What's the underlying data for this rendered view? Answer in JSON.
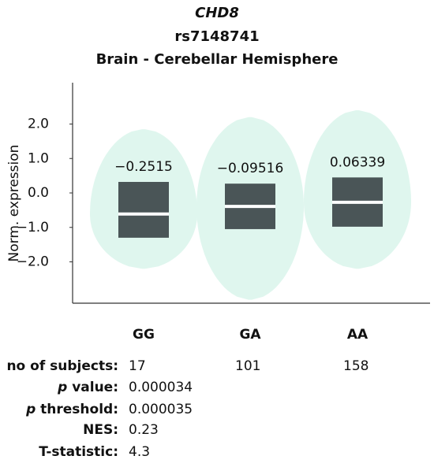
{
  "chart_data": {
    "type": "violin",
    "title": "CHD8",
    "subtitle": "rs7148741",
    "tissue": "Brain - Cerebellar Hemisphere",
    "ylabel": "Norm. expression",
    "categories": [
      "GG",
      "GA",
      "AA"
    ],
    "color": "#dff6ee",
    "box_color": "#4a5557",
    "values": [
      -0.2515,
      -0.09516,
      0.06339
    ],
    "value_labels": [
      "−0.2515",
      "−0.09516",
      "0.06339"
    ],
    "q1": [
      -1.3,
      -1.05,
      -0.98
    ],
    "median": [
      -0.61,
      -0.39,
      -0.27
    ],
    "q3": [
      0.32,
      0.27,
      0.45
    ],
    "min": [
      -2.2,
      -3.1,
      -2.2
    ],
    "max": [
      1.85,
      2.2,
      2.4
    ],
    "ylim": [
      -3.2,
      3.2
    ],
    "yticks": [
      {
        "value": 2,
        "label": "2.0"
      },
      {
        "value": 1,
        "label": "1.0"
      },
      {
        "value": 0,
        "label": "0.0"
      },
      {
        "value": -1,
        "label": "−1.0"
      },
      {
        "value": -2,
        "label": "−2.0"
      }
    ]
  },
  "stats": [
    {
      "label": "no of subjects:",
      "values": [
        "17",
        "101",
        "158"
      ]
    },
    {
      "label_italic": "p",
      "label": "value:",
      "values": [
        "0.000034"
      ]
    },
    {
      "label_italic": "p",
      "label": "threshold:",
      "values": [
        "0.000035"
      ]
    },
    {
      "label": "NES:",
      "values": [
        "0.23"
      ]
    },
    {
      "label": "T-statistic:",
      "values": [
        "4.3"
      ]
    }
  ]
}
